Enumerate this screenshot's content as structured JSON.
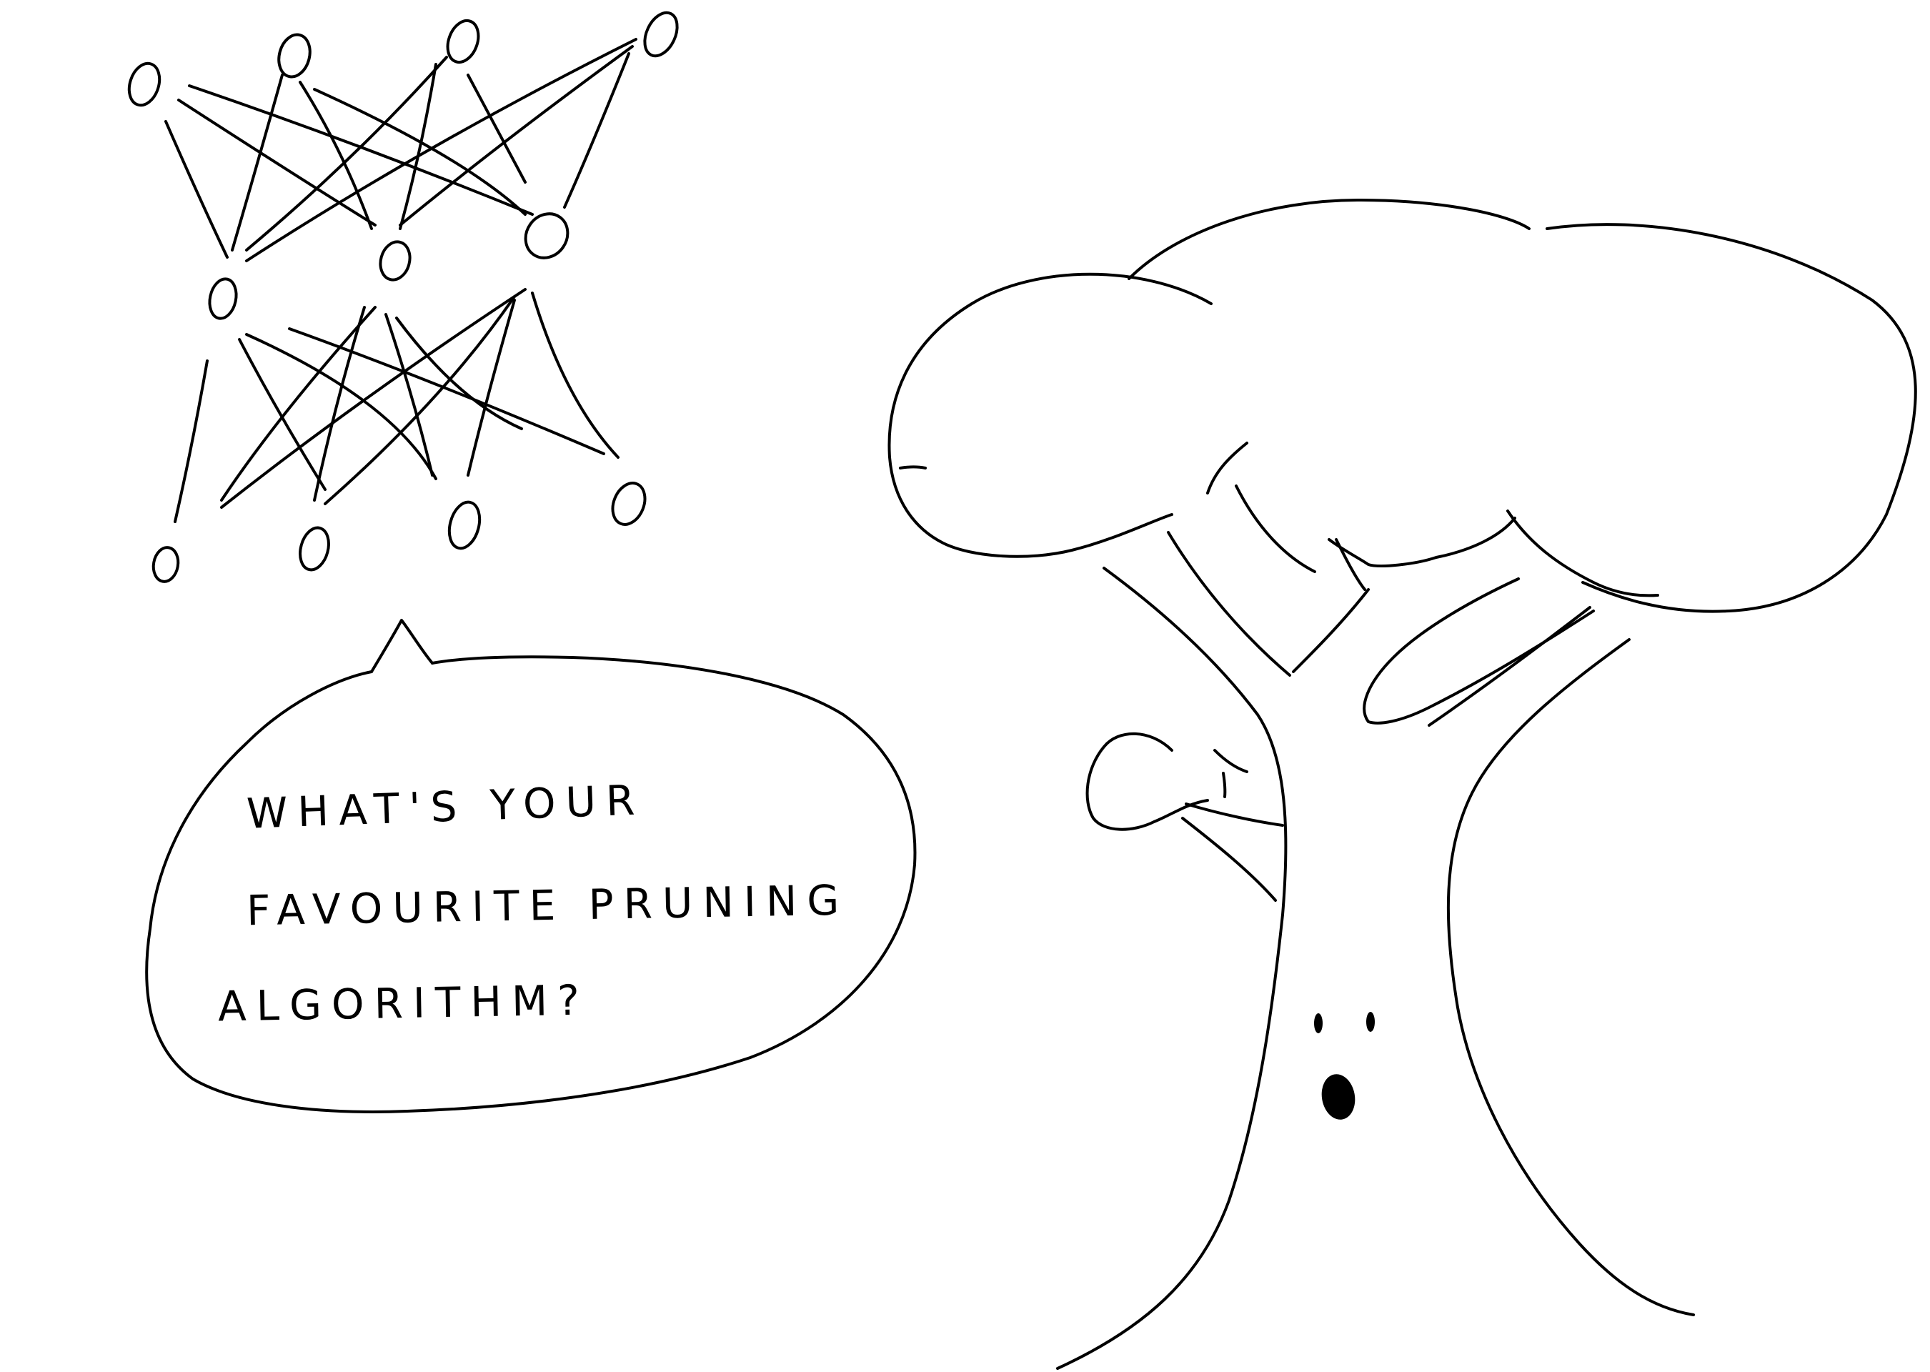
{
  "comic": {
    "speech": {
      "line1": "WHAT'S YOUR",
      "line2": "FAVOURITE PRUNING",
      "line3": "ALGORITHM?"
    },
    "ink_color": "#000000",
    "background_color": "#ffffff",
    "characters": [
      "neural-network",
      "tree"
    ],
    "tree_expression": "surprised"
  }
}
